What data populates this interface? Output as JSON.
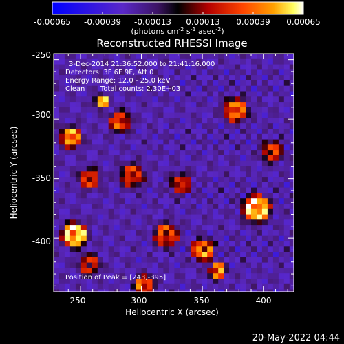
{
  "chart_data": {
    "type": "heatmap",
    "title": "Reconstructed RHESSI Image",
    "xlabel": "Heliocentric X (arcsec)",
    "ylabel": "Heliocentric Y (arcsec)",
    "xlim": [
      228,
      425
    ],
    "ylim": [
      -445,
      -245
    ],
    "x_ticks": [
      250,
      300,
      350,
      400
    ],
    "y_ticks": [
      -250,
      -300,
      -350,
      -400
    ],
    "colorbar": {
      "range": [
        -0.00065,
        0.00065
      ],
      "ticks": [
        "-0.00065",
        "-0.00039",
        "-0.00013",
        "0.00013",
        "0.00039",
        "0.00065"
      ],
      "label_main": "(photons cm",
      "label_sup1": "-2",
      "label_mid1": " s",
      "label_sup2": "-1",
      "label_mid2": " asec",
      "label_sup3": "-2",
      "label_end": ")"
    },
    "annotations": {
      "time_range": "3-Dec-2014 21:36:52.000 to 21:41:16.000",
      "detectors": "Detectors: 3F 6F 9F, Att 0",
      "energy": "Energy Range: 12.0 - 25.0 keV",
      "clean": "Clean",
      "counts": "Total counts: 2.30E+03",
      "peak": "Position of Peak = [243,-395]"
    },
    "peak_position": [
      243,
      -395
    ],
    "grid": false,
    "colormap": "rhessi (blue-purple-black-red-orange-yellow-white)"
  },
  "footer": {
    "timestamp": "20-May-2022 04:44"
  }
}
